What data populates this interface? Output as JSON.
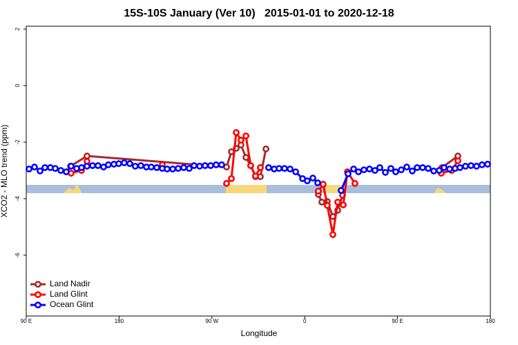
{
  "chart_data": {
    "type": "line",
    "title": "15S-10S January (Ver 10)   2015-01-01 to 2020-12-18",
    "x_label": "Longitude",
    "y_label": "XCO2 - MLO trend (ppm)",
    "xlim": [
      90,
      540
    ],
    "ylim": [
      -8.15,
      2.1
    ],
    "xticks": [
      {
        "value": 90,
        "label": "90 E"
      },
      {
        "value": 180,
        "label": "180"
      },
      {
        "value": 270,
        "label": "90 W"
      },
      {
        "value": 360,
        "label": "0"
      },
      {
        "value": 450,
        "label": "90 E"
      },
      {
        "value": 540,
        "label": "180"
      }
    ],
    "yticks": [
      2,
      0,
      -2,
      -4,
      -6
    ],
    "legend": "bottom-left",
    "series": [
      {
        "name": "Land Nadir",
        "color": "#a52a2a",
        "x": [
          132.9,
          148.9,
          284.2,
          288.9,
          293.6,
          298.2,
          303.0,
          307.6,
          312.3,
          317.0,
          322.4,
          350,
          373.2,
          376.6,
          381.9,
          387.3,
          392.0,
          396.7,
          450,
          493.1,
          508.5
        ],
        "values": [
          -2.85,
          -2.49,
          -2.88,
          -2.34,
          -2.22,
          -2.1,
          -2.54,
          -2.83,
          -3.22,
          -3.22,
          -2.24,
          null,
          -3.85,
          -4.12,
          -4.1,
          -4.63,
          -4.41,
          -3.88,
          null,
          -2.9,
          -2.49
        ]
      },
      {
        "name": "Land Glint",
        "color": "#ff0000",
        "x": [
          133.5,
          143.6,
          148.9,
          200,
          221.9,
          260,
          284.2,
          288.9,
          293.6,
          298.2,
          303.0,
          307.6,
          312.3,
          317.0,
          350,
          373.2,
          377.9,
          381.9,
          387.3,
          392.0,
          397.4,
          401.4,
          408.7,
          450,
          492.4,
          502.5,
          508.5
        ],
        "values": [
          -3.1,
          -3.0,
          -2.68,
          null,
          -2.8,
          null,
          -3.46,
          -3.29,
          -1.66,
          -1.93,
          -1.78,
          -2.83,
          -3.2,
          -2.9,
          null,
          -3.73,
          -3.49,
          -4.24,
          -5.27,
          -4.12,
          -4.22,
          -3.05,
          -3.46,
          null,
          -3.1,
          -3.0,
          -2.66
        ]
      },
      {
        "name": "Ocean Glint",
        "color": "#0000ff",
        "x": [
          92.7,
          98.0,
          103.4,
          108.1,
          113.4,
          118.1,
          123.5,
          128.8,
          133.5,
          138.8,
          143.6,
          148.9,
          154.3,
          159.6,
          165.0,
          169.6,
          175.0,
          179.7,
          185.0,
          190.4,
          195.7,
          201.1,
          206.5,
          211.2,
          216.5,
          221.9,
          226.6,
          232.0,
          237.3,
          242.7,
          248.0,
          252.7,
          258.1,
          263.4,
          268.8,
          274.1,
          279.5,
          300,
          325.0,
          330.4,
          335.1,
          340.4,
          345.8,
          351.2,
          357.9,
          362.5,
          367.9,
          372.6,
          385,
          395.3,
          402.0,
          407.4,
          412.1,
          417.4,
          422.8,
          428.1,
          432.8,
          438.2,
          443.5,
          448.2,
          453.6,
          458.9,
          464.3,
          469.0,
          474.3,
          479.7,
          485.1,
          490.4,
          495.1,
          500.5,
          505.8,
          510.5,
          515.9,
          521.2,
          526.6,
          531.9,
          537.3
        ],
        "values": [
          -2.95,
          -2.88,
          -3.02,
          -2.9,
          -2.9,
          -2.93,
          -3.0,
          -3.05,
          -2.85,
          -2.93,
          -2.9,
          -2.85,
          -2.83,
          -2.83,
          -2.88,
          -2.8,
          -2.78,
          -2.76,
          -2.73,
          -2.76,
          -2.85,
          -2.83,
          -2.88,
          -2.88,
          -2.9,
          -2.93,
          -2.95,
          -2.95,
          -2.93,
          -2.9,
          -2.93,
          -2.83,
          -2.85,
          -2.83,
          -2.83,
          -2.8,
          -2.8,
          null,
          -2.9,
          -2.95,
          -2.93,
          -2.93,
          -2.95,
          -3.05,
          -3.29,
          -3.37,
          -3.27,
          -3.44,
          null,
          -3.71,
          -3.12,
          -2.95,
          -3.05,
          -2.98,
          -2.95,
          -3.0,
          -2.9,
          -3.07,
          -2.93,
          -3.05,
          -2.98,
          -2.88,
          -3.02,
          -2.9,
          -2.9,
          -2.93,
          -3.02,
          -3.0,
          -2.9,
          -2.95,
          -2.93,
          -2.9,
          -2.85,
          -2.83,
          -2.85,
          -2.8,
          -2.78
        ]
      }
    ]
  }
}
